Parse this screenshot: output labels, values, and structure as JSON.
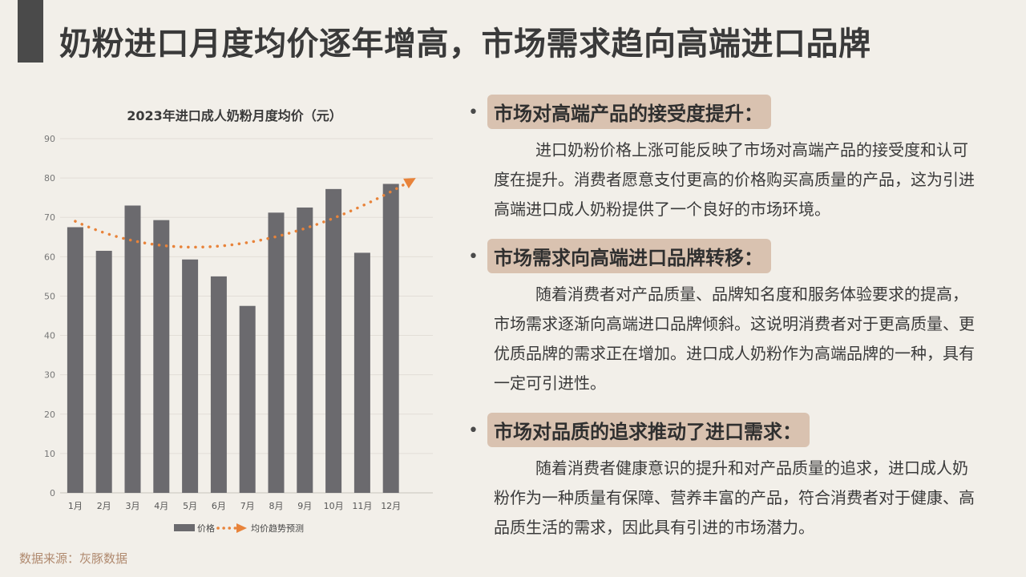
{
  "page": {
    "title": "奶粉进口月度均价逐年增高，市场需求趋向高端进口品牌",
    "source": "数据来源：灰豚数据"
  },
  "colors": {
    "bar": "#6b6a6e",
    "trend": "#e8833a",
    "accent": "#4a4a4a",
    "highlight": "#d9c2b0"
  },
  "chart_data": {
    "type": "bar",
    "title": "2023年进口成人奶粉月度均价（元）",
    "categories": [
      "1月",
      "2月",
      "3月",
      "4月",
      "5月",
      "6月",
      "7月",
      "8月",
      "9月",
      "10月",
      "11月",
      "12月"
    ],
    "series": [
      {
        "name": "价格",
        "values": [
          67.5,
          61.5,
          73,
          69.3,
          59.3,
          55,
          47.5,
          71.2,
          72.5,
          77.2,
          61,
          78.5
        ]
      }
    ],
    "trend": {
      "name": "均价趋势预测",
      "style": "dotted-arrow"
    },
    "ylim": [
      0,
      90
    ],
    "yticks": [
      0,
      10,
      20,
      30,
      40,
      50,
      60,
      70,
      80,
      90
    ],
    "grid": true,
    "legend": "bottom"
  },
  "sections": [
    {
      "heading": "市场对高端产品的接受度提升：",
      "body": "进口奶粉价格上涨可能反映了市场对高端产品的接受度和认可度在提升。消费者愿意支付更高的价格购买高质量的产品，这为引进高端进口成人奶粉提供了一个良好的市场环境。"
    },
    {
      "heading": "市场需求向高端进口品牌转移：",
      "body": "随着消费者对产品质量、品牌知名度和服务体验要求的提高，市场需求逐渐向高端进口品牌倾斜。这说明消费者对于更高质量、更优质品牌的需求正在增加。进口成人奶粉作为高端品牌的一种，具有一定可引进性。"
    },
    {
      "heading": "市场对品质的追求推动了进口需求：",
      "body": "随着消费者健康意识的提升和对产品质量的追求，进口成人奶粉作为一种质量有保障、营养丰富的产品，符合消费者对于健康、高品质生活的需求，因此具有引进的市场潜力。"
    }
  ]
}
